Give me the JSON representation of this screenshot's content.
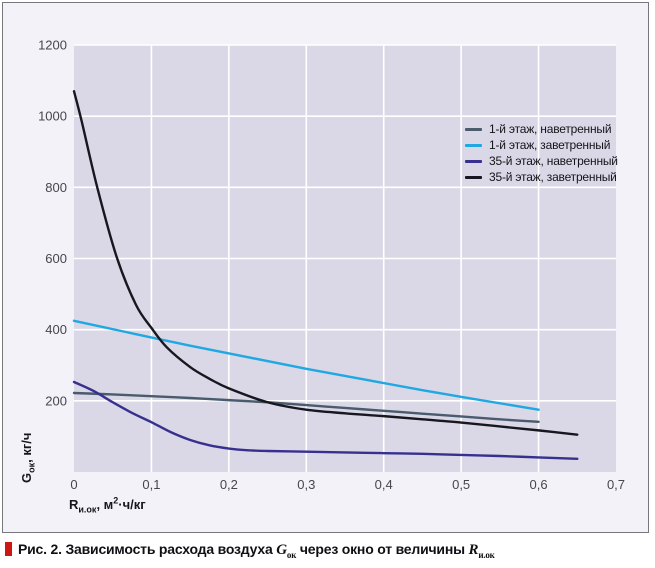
{
  "figure": {
    "caption": {
      "prefix": "Рис. 2. Зависимость расхода воздуха ",
      "g_symbol": "G",
      "g_sub": "ок",
      "middle": " через окно от величины ",
      "r_symbol": "R",
      "r_sub": "и.ок",
      "bullet_color": "#cc1712"
    }
  },
  "chart_data": {
    "type": "line",
    "title": "",
    "grid": true,
    "legend_position": "top-right",
    "plot_bg": "#dad8e6",
    "grid_color": "#ffffff",
    "outer_bg": "#f3f2f9",
    "x_axis": {
      "label_symbol": "R",
      "label_sub": "и.ок",
      "label_rest_1": ", м",
      "label_sup": "2",
      "label_rest_2": "·ч/кг",
      "min": 0,
      "max": 0.7,
      "ticks": [
        {
          "label": "0",
          "value": 0
        },
        {
          "label": "0,1",
          "value": 0.1
        },
        {
          "label": "0,2",
          "value": 0.2
        },
        {
          "label": "0,3",
          "value": 0.3
        },
        {
          "label": "0,4",
          "value": 0.4
        },
        {
          "label": "0,5",
          "value": 0.5
        },
        {
          "label": "0,6",
          "value": 0.6
        },
        {
          "label": "0,7",
          "value": 0.7
        }
      ]
    },
    "y_axis": {
      "label_symbol": "G",
      "label_sub": "ок",
      "label_rest": ", кг/ч",
      "min": 0,
      "max": 1200,
      "ticks": [
        {
          "label": "200",
          "value": 200
        },
        {
          "label": "400",
          "value": 400
        },
        {
          "label": "600",
          "value": 600
        },
        {
          "label": "800",
          "value": 800
        },
        {
          "label": "1000",
          "value": 1000
        },
        {
          "label": "1200",
          "value": 1200
        }
      ]
    },
    "series": [
      {
        "name": "1-й этаж, наветренный",
        "color": "#4a5b6d",
        "x": [
          0,
          0.05,
          0.1,
          0.15,
          0.2,
          0.25,
          0.3,
          0.35,
          0.4,
          0.45,
          0.5,
          0.55,
          0.6
        ],
        "y": [
          222,
          218,
          213,
          208,
          202,
          196,
          188,
          180,
          172,
          164,
          156,
          148,
          141
        ]
      },
      {
        "name": "1-й этаж, заветренный",
        "color": "#1fa8e2",
        "x": [
          0,
          0.15,
          0.3,
          0.45,
          0.6
        ],
        "y": [
          425,
          355,
          290,
          230,
          175
        ]
      },
      {
        "name": "35-й этаж, наветренный",
        "color": "#37308f",
        "x": [
          0,
          0.025,
          0.05,
          0.075,
          0.1,
          0.125,
          0.15,
          0.175,
          0.2,
          0.225,
          0.25,
          0.3,
          0.35,
          0.4,
          0.45,
          0.5,
          0.55,
          0.6,
          0.65
        ],
        "y": [
          253,
          228,
          196,
          166,
          140,
          112,
          90,
          75,
          66,
          61,
          59,
          57,
          55,
          53,
          51,
          48,
          45,
          41,
          37
        ]
      },
      {
        "name": "35-й этаж, заветренный",
        "color": "#17171f",
        "x": [
          0,
          0.01,
          0.03,
          0.055,
          0.08,
          0.1,
          0.12,
          0.15,
          0.175,
          0.2,
          0.25,
          0.3,
          0.35,
          0.4,
          0.45,
          0.5,
          0.55,
          0.6,
          0.65
        ],
        "y": [
          1070,
          985,
          800,
          605,
          470,
          405,
          350,
          295,
          262,
          235,
          196,
          175,
          165,
          157,
          148,
          139,
          128,
          117,
          105
        ]
      }
    ]
  }
}
